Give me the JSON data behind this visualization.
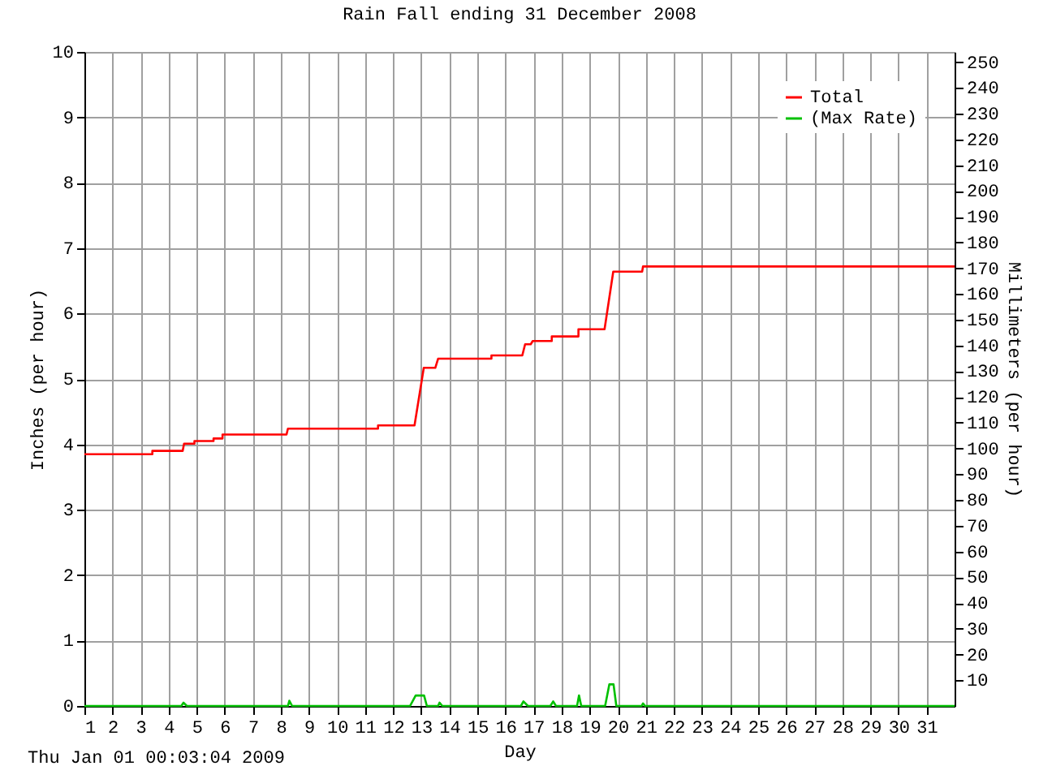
{
  "chart_data": {
    "type": "line",
    "title": "Rain Fall ending 31 December 2008",
    "xlabel": "Day",
    "ylabel": "Inches (per hour)",
    "y2label": "Millimeters (per hour)",
    "annotations": [
      "Thu Jan 01 00:03:04 2009"
    ],
    "xlim": [
      1,
      32
    ],
    "xticks": [
      1,
      2,
      3,
      4,
      5,
      6,
      7,
      8,
      9,
      10,
      11,
      12,
      13,
      14,
      15,
      16,
      17,
      18,
      19,
      20,
      21,
      22,
      23,
      24,
      25,
      26,
      27,
      28,
      29,
      30,
      31
    ],
    "ylim": [
      0,
      10
    ],
    "yticks": [
      0,
      1,
      2,
      3,
      4,
      5,
      6,
      7,
      8,
      9,
      10
    ],
    "y2lim": [
      0,
      254
    ],
    "y2ticks": [
      10,
      20,
      30,
      40,
      50,
      60,
      70,
      80,
      90,
      100,
      110,
      120,
      130,
      140,
      150,
      160,
      170,
      180,
      190,
      200,
      210,
      220,
      230,
      240,
      250
    ],
    "grid": true,
    "legend": "top right",
    "marker": "none",
    "line_style": "solid",
    "series": [
      {
        "name": "Total",
        "color": "#ff0000",
        "x": [
          1,
          3.42,
          3.42,
          4.5,
          4.55,
          4.92,
          4.92,
          5.6,
          5.6,
          5.92,
          5.92,
          8.2,
          8.25,
          11.46,
          11.46,
          12.76,
          13.09,
          13.5,
          13.6,
          15.5,
          15.5,
          16.6,
          16.7,
          16.9,
          16.97,
          17.65,
          17.65,
          18.6,
          18.6,
          19.53,
          19.84,
          20.87,
          20.9,
          32
        ],
        "values": [
          3.85,
          3.85,
          3.9,
          3.9,
          4.01,
          4.01,
          4.05,
          4.05,
          4.09,
          4.09,
          4.15,
          4.15,
          4.24,
          4.24,
          4.29,
          4.29,
          5.17,
          5.17,
          5.31,
          5.31,
          5.36,
          5.36,
          5.53,
          5.53,
          5.58,
          5.58,
          5.65,
          5.65,
          5.76,
          5.76,
          6.64,
          6.64,
          6.72,
          6.72
        ]
      },
      {
        "name": "(Max Rate)",
        "color": "#00c000",
        "x": [
          1,
          4.45,
          4.53,
          4.65,
          8.25,
          8.3,
          8.4,
          12.6,
          12.8,
          13.1,
          13.2,
          13.6,
          13.65,
          13.75,
          16.55,
          16.64,
          16.8,
          17.6,
          17.7,
          17.8,
          18.55,
          18.62,
          18.7,
          19.55,
          19.7,
          19.85,
          19.95,
          20.85,
          20.9,
          20.97,
          32
        ],
        "values": [
          0,
          0,
          0.05,
          0,
          0,
          0.08,
          0,
          0,
          0.16,
          0.16,
          0,
          0,
          0.05,
          0,
          0,
          0.07,
          0,
          0,
          0.07,
          0,
          0,
          0.16,
          0,
          0,
          0.33,
          0.33,
          0,
          0,
          0.04,
          0,
          0
        ]
      }
    ]
  }
}
